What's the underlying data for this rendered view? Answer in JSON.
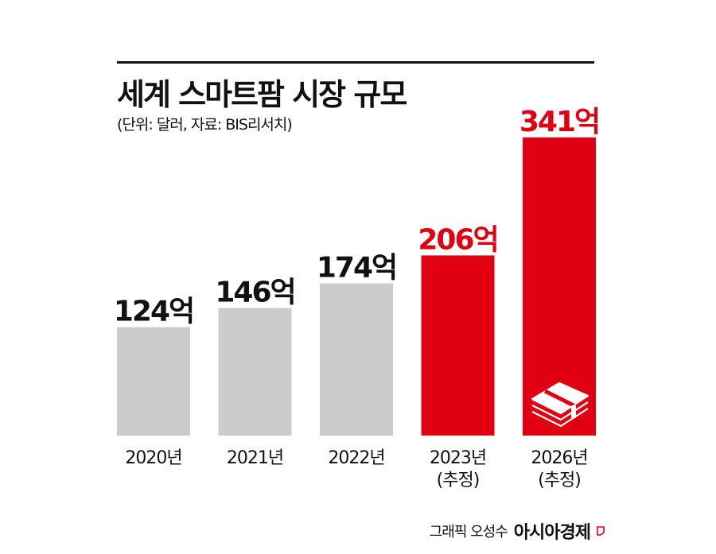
{
  "header": {
    "title": "세계 스마트팜 시장 규모",
    "subtitle": "(단위: 달러, 자료: BIS리서치)"
  },
  "chart_data": {
    "type": "bar",
    "title": "세계 스마트팜 시장 규모",
    "unit": "달러",
    "source": "BIS리서치",
    "categories": [
      "2020년",
      "2021년",
      "2022년",
      "2023년",
      "2026년"
    ],
    "category_notes": [
      "",
      "",
      "",
      "(추정)",
      "(추정)"
    ],
    "values": [
      124,
      146,
      174,
      206,
      341
    ],
    "value_labels": [
      "124억",
      "146억",
      "174억",
      "206억",
      "341억"
    ],
    "bar_colors": [
      "#cccccc",
      "#cccccc",
      "#cccccc",
      "#e00012",
      "#e00012"
    ],
    "label_colors": [
      "#111111",
      "#111111",
      "#111111",
      "#e00012",
      "#e00012"
    ],
    "grid": false,
    "legend": "none",
    "icon": "money-stack-icon"
  },
  "footer": {
    "credit_author": "그래픽 오성수",
    "credit_brand": "아시아경제",
    "brand_color": "#e00012"
  }
}
